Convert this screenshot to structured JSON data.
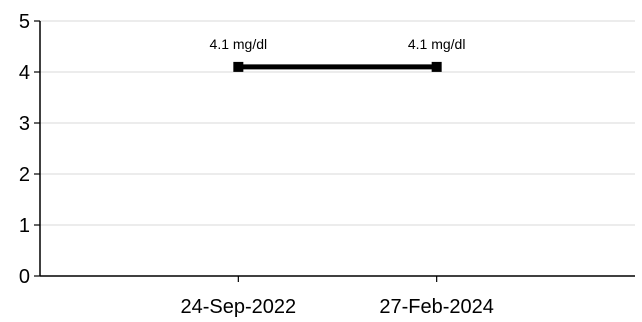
{
  "chart_data": {
    "type": "line",
    "categories": [
      "24-Sep-2022",
      "27-Feb-2024"
    ],
    "series": [
      {
        "values": [
          4.1,
          4.1
        ],
        "data_labels": [
          "4.1 mg/dl",
          "4.1 mg/dl"
        ],
        "color": "#000000"
      }
    ],
    "y_ticks": [
      "0",
      "1",
      "2",
      "3",
      "4",
      "5"
    ],
    "ylim": [
      0,
      5
    ],
    "grid": true,
    "title": "",
    "xlabel": "",
    "ylabel": ""
  }
}
